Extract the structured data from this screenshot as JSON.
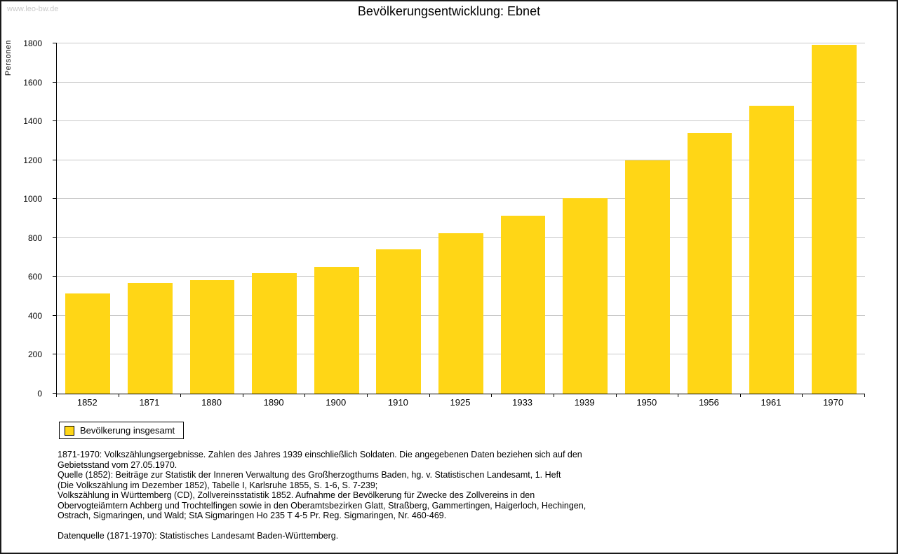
{
  "watermark": "www.leo-bw.de",
  "title": "Bevölkerungsentwicklung: Ebnet",
  "chart_data": {
    "type": "bar",
    "categories": [
      "1852",
      "1871",
      "1880",
      "1890",
      "1900",
      "1910",
      "1925",
      "1933",
      "1939",
      "1950",
      "1956",
      "1961",
      "1970"
    ],
    "values": [
      515,
      570,
      585,
      618,
      650,
      743,
      826,
      913,
      1004,
      1200,
      1340,
      1480,
      1793
    ],
    "title": "Bevölkerungsentwicklung: Ebnet",
    "xlabel": "",
    "ylabel": "Personen",
    "ylim": [
      0,
      1800
    ],
    "ytick_step": 200,
    "grid": true,
    "legend_position": "bottom-left",
    "legend_label": "Bevölkerung insgesamt",
    "bar_color": "#FFD616"
  },
  "notes": {
    "lines": [
      "1871-1970: Volkszählungsergebnisse. Zahlen des Jahres 1939 einschließlich Soldaten. Die angegebenen Daten beziehen sich auf den",
      "Gebietsstand vom 27.05.1970.",
      "Quelle (1852): Beiträge zur Statistik der Inneren Verwaltung des Großherzogthums Baden, hg. v. Statistischen Landesamt, 1. Heft",
      "(Die Volkszählung im Dezember 1852), Tabelle I, Karlsruhe 1855, S. 1-6, S. 7-239;",
      "Volkszählung in Württemberg (CD), Zollvereinsstatistik 1852. Aufnahme der Bevölkerung für Zwecke des Zollvereins in den",
      "Obervogteiämtern Achberg und Trochtelfingen sowie in den Oberamtsbezirken Glatt, Straßberg, Gammertingen, Haigerloch, Hechingen,",
      "Ostrach, Sigmaringen, und Wald; StA Sigmaringen Ho 235 T 4-5 Pr. Reg. Sigmaringen, Nr. 460-469."
    ],
    "datasource": "Datenquelle (1871-1970): Statistisches Landesamt Baden-Württemberg."
  }
}
